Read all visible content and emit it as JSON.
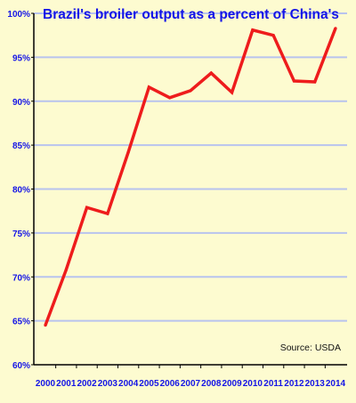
{
  "chart_data": {
    "type": "line",
    "title": "Brazil's broiler output as a percent of China's",
    "xlabel": "",
    "ylabel": "",
    "categories": [
      "2000",
      "2001",
      "2002",
      "2003",
      "2004",
      "2005",
      "2006",
      "2007",
      "2008",
      "2009",
      "2010",
      "2011",
      "2012",
      "2013",
      "2014"
    ],
    "series": [
      {
        "values": [
          64.5,
          70.8,
          77.9,
          77.2,
          84.2,
          91.6,
          90.4,
          91.2,
          93.2,
          91.0,
          98.1,
          97.5,
          92.3,
          92.2,
          98.3
        ]
      }
    ],
    "ylim": [
      60,
      100
    ],
    "yticks": [
      60,
      65,
      70,
      75,
      80,
      85,
      90,
      95,
      100
    ],
    "ytick_labels": [
      "60%",
      "65%",
      "70%",
      "75%",
      "80%",
      "85%",
      "90%",
      "95%",
      "100%"
    ],
    "annotation": "Source: USDA",
    "grid": true,
    "colors": {
      "line": "#ee1c1c",
      "grid": "#b8c3ee",
      "text": "#1414e6",
      "background": "#fdfbd0"
    }
  }
}
